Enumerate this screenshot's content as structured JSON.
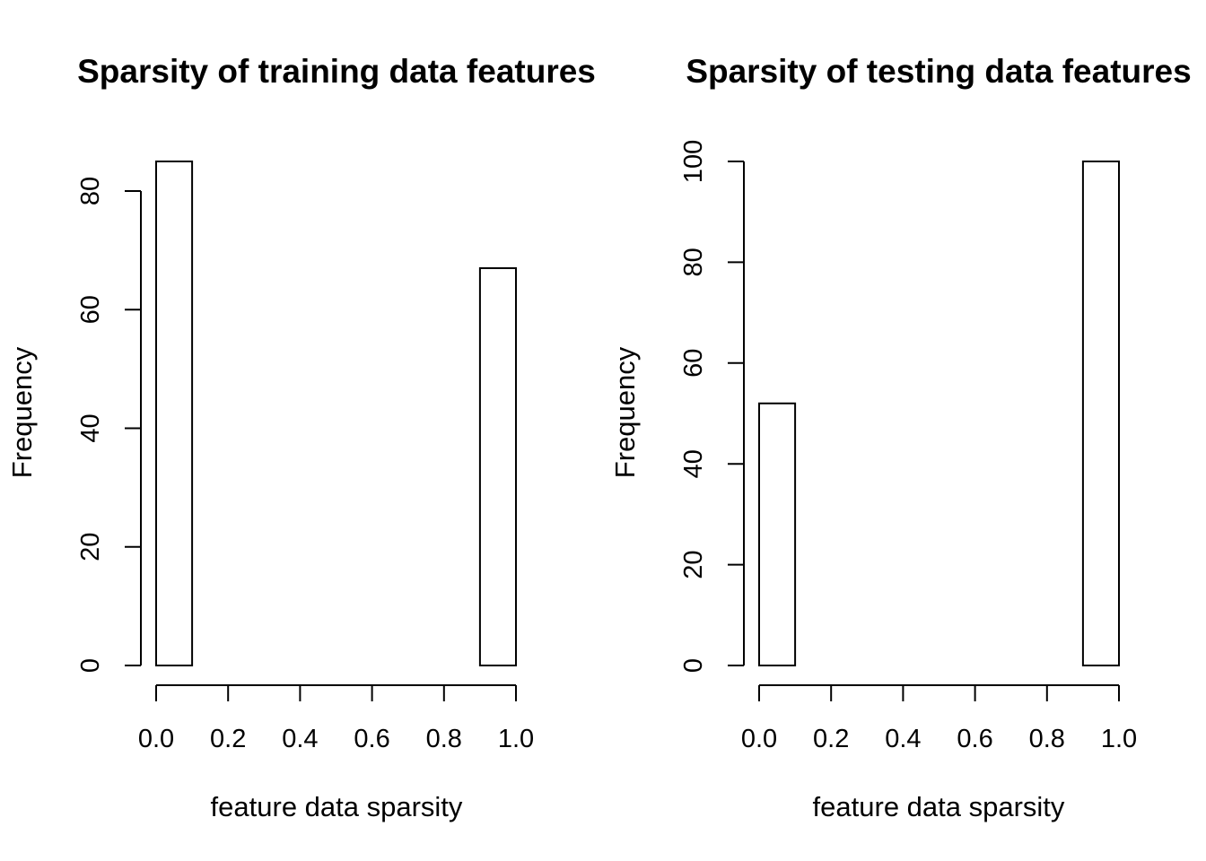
{
  "chart_data": [
    {
      "type": "bar",
      "title": "Sparsity of training data features",
      "xlabel": "feature data sparsity",
      "ylabel": "Frequency",
      "bin_edges": [
        0.0,
        0.1,
        0.2,
        0.3,
        0.4,
        0.5,
        0.6,
        0.7,
        0.8,
        0.9,
        1.0
      ],
      "values": [
        85,
        0,
        0,
        0,
        0,
        0,
        0,
        0,
        0,
        67
      ],
      "xlim": [
        0,
        1
      ],
      "ylim": [
        0,
        85
      ],
      "xticks": [
        "0.0",
        "0.2",
        "0.4",
        "0.6",
        "0.8",
        "1.0"
      ],
      "yticks": [
        "0",
        "20",
        "40",
        "60",
        "80"
      ],
      "grid": false
    },
    {
      "type": "bar",
      "title": "Sparsity of testing data features",
      "xlabel": "feature data sparsity",
      "ylabel": "Frequency",
      "bin_edges": [
        0.0,
        0.1,
        0.2,
        0.3,
        0.4,
        0.5,
        0.6,
        0.7,
        0.8,
        0.9,
        1.0
      ],
      "values": [
        52,
        0,
        0,
        0,
        0,
        0,
        0,
        0,
        0,
        100
      ],
      "xlim": [
        0,
        1
      ],
      "ylim": [
        0,
        100
      ],
      "xticks": [
        "0.0",
        "0.2",
        "0.4",
        "0.6",
        "0.8",
        "1.0"
      ],
      "yticks": [
        "0",
        "20",
        "40",
        "60",
        "80",
        "100"
      ],
      "grid": false
    }
  ]
}
